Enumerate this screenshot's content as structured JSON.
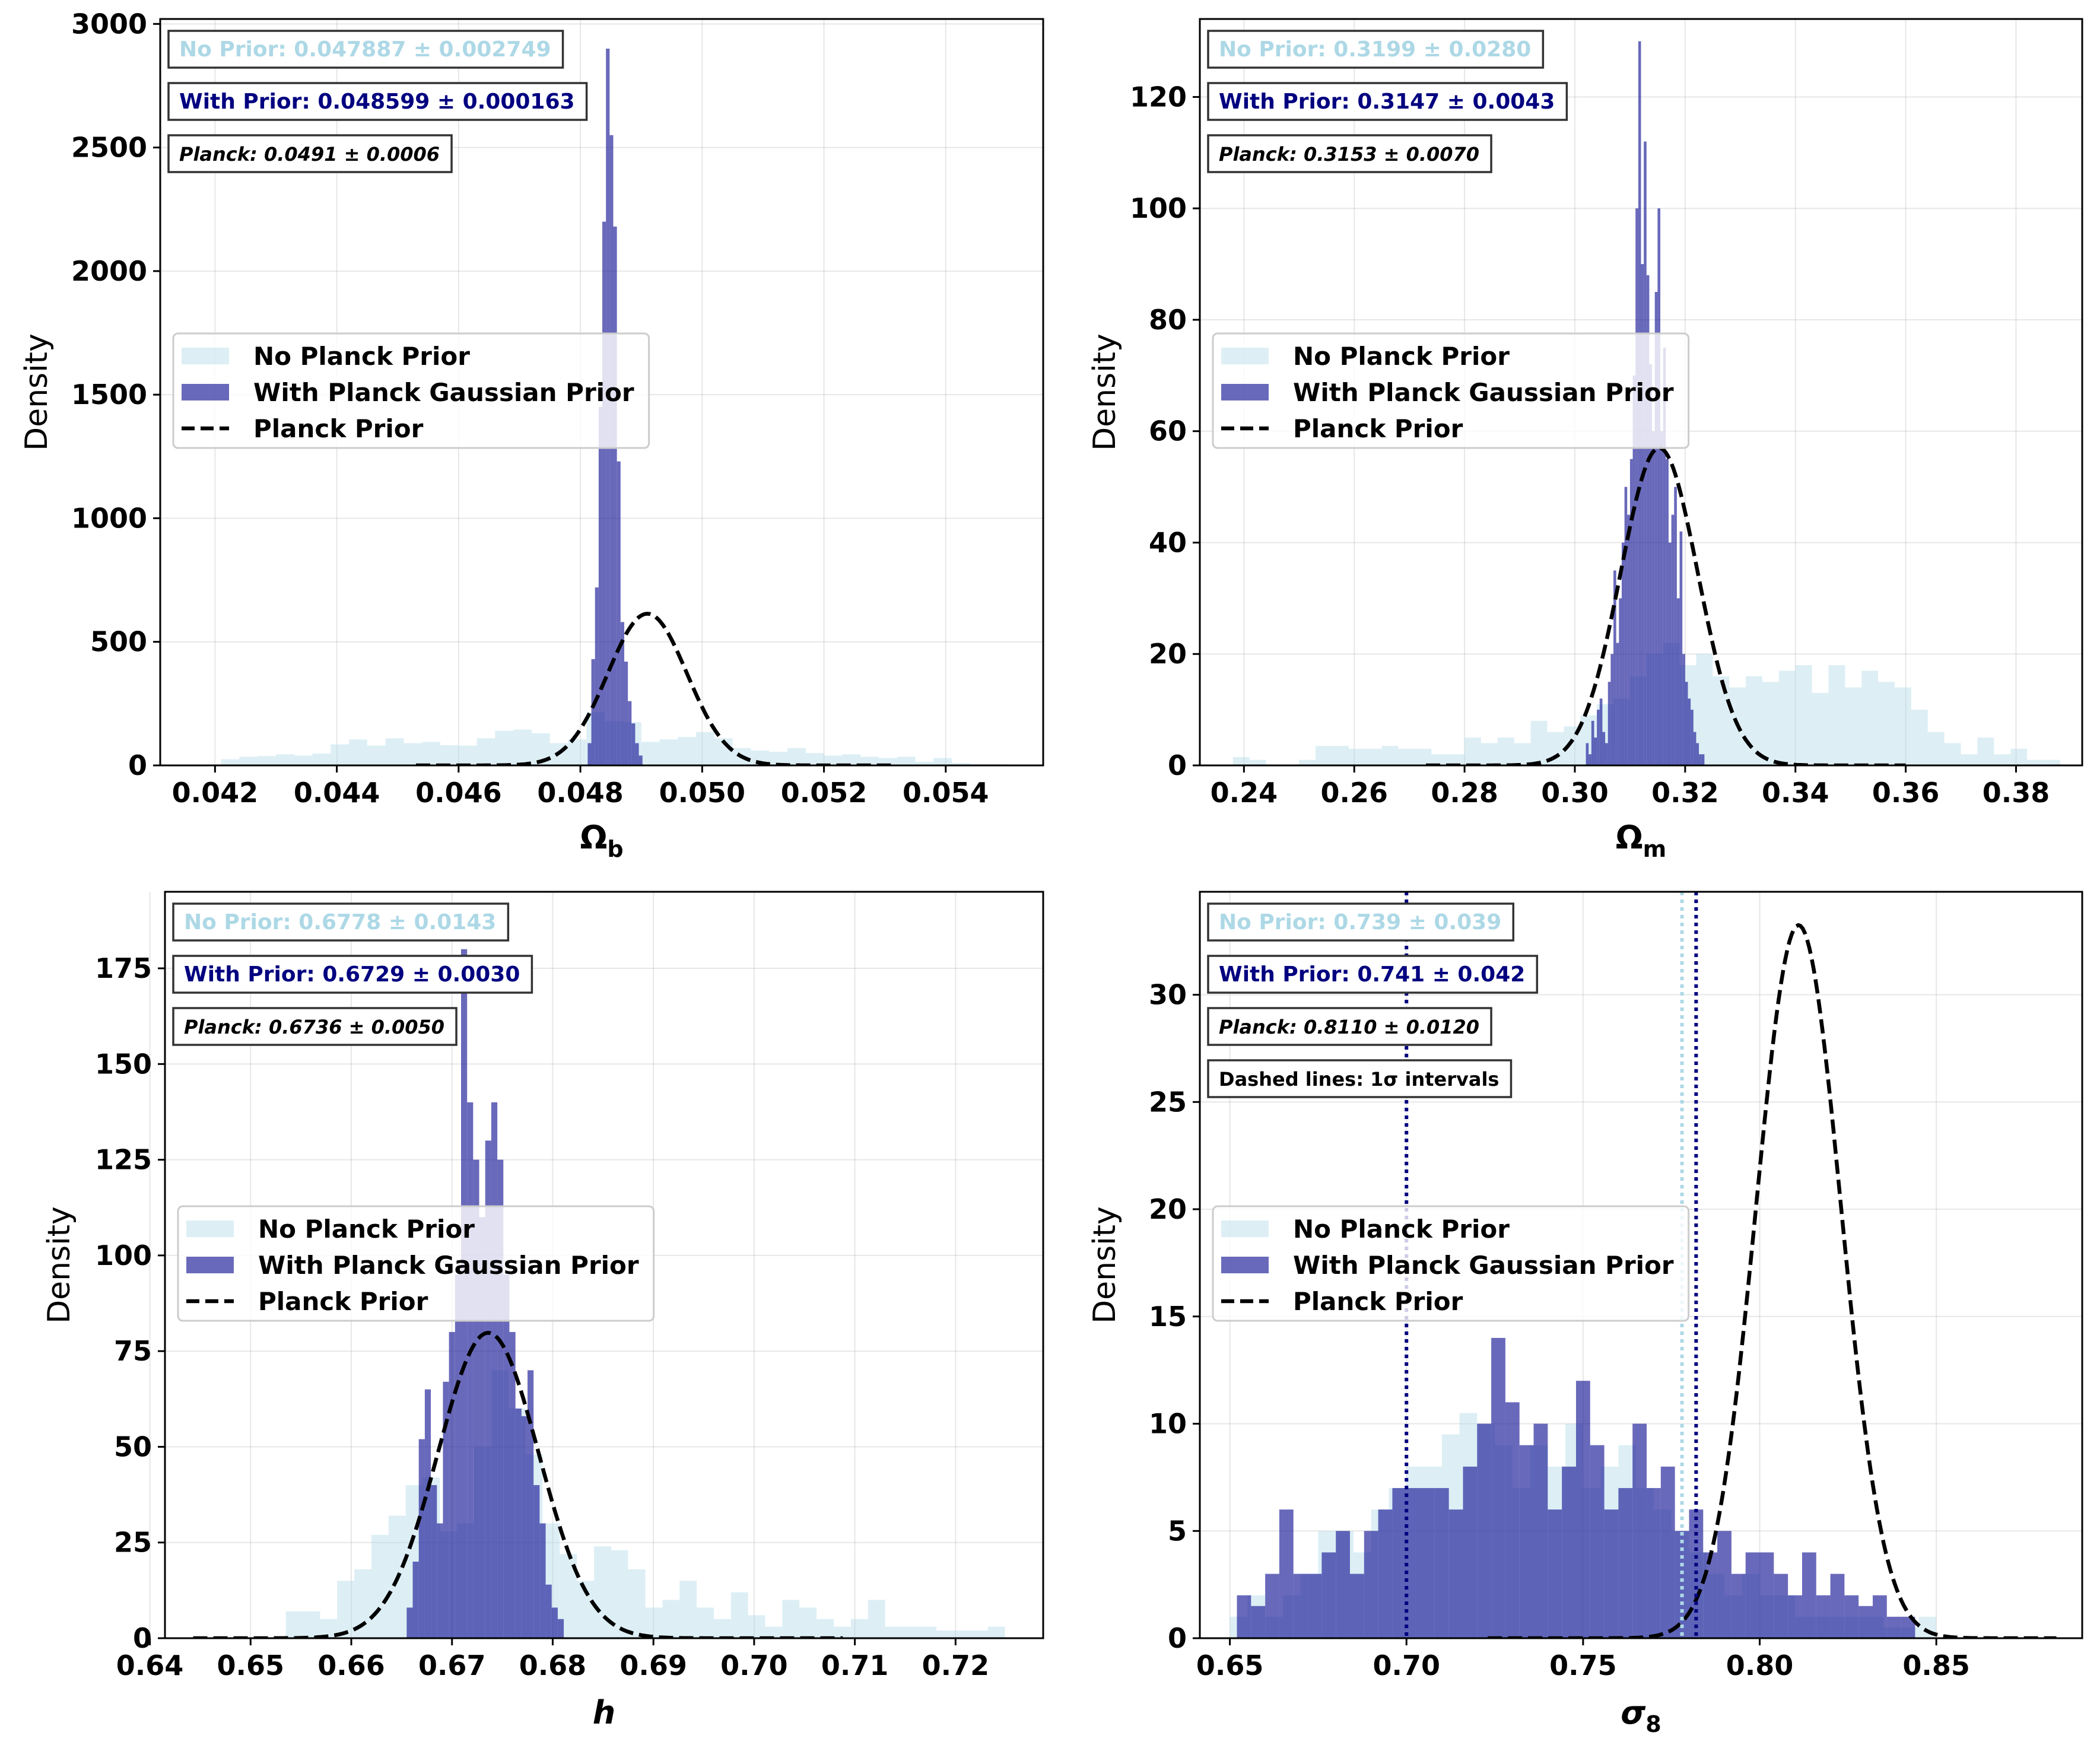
{
  "colors": {
    "no_prior": "#add8e6",
    "with_prior": "#191996",
    "planck": "#000000",
    "with_prior_text": "#000080"
  },
  "legend": {
    "no_prior": "No Planck Prior",
    "with_prior": "With Planck Gaussian Prior",
    "planck": "Planck Prior"
  },
  "ylabel": "Density",
  "chart_data": [
    {
      "type": "histogram",
      "xlabel": "Ω",
      "xlabel_sub": "b",
      "xlabel_style": "bold",
      "xlim": [
        0.0411,
        0.0556
      ],
      "ylim": [
        0,
        3020
      ],
      "xticks": [
        0.042,
        0.044,
        0.046,
        0.048,
        0.05,
        0.052,
        0.054
      ],
      "xtick_labels": [
        "0.042",
        "0.044",
        "0.046",
        "0.048",
        "0.050",
        "0.052",
        "0.054"
      ],
      "yticks": [
        0,
        500,
        1000,
        1500,
        2000,
        2500,
        3000
      ],
      "ytick_labels": [
        "0",
        "500",
        "1000",
        "1500",
        "2000",
        "2500",
        "3000"
      ],
      "no_prior_text": "No Prior: 0.047887 ± 0.002749",
      "with_prior_text": "With Prior: 0.048599 ± 0.000163",
      "planck_text": "Planck: 0.0491 ± 0.0006",
      "note": null,
      "planck": {
        "mean": 0.0491,
        "sigma": 0.00065,
        "range": [
          0.0453,
          0.0531
        ]
      },
      "no_prior": {
        "bins": [
          0.0421,
          0.0424,
          0.0427,
          0.043,
          0.0433,
          0.0436,
          0.0439,
          0.0442,
          0.0445,
          0.0448,
          0.0451,
          0.0454,
          0.0457,
          0.046,
          0.0463,
          0.0466,
          0.0469,
          0.0472,
          0.0475,
          0.0478,
          0.0481,
          0.0484,
          0.0487,
          0.049,
          0.0493,
          0.0496,
          0.0499,
          0.0502,
          0.0505,
          0.0508,
          0.0511,
          0.0514,
          0.0517,
          0.052,
          0.0523,
          0.0526,
          0.0529,
          0.0532,
          0.0535,
          0.0538,
          0.0541,
          0.0544,
          0.0547,
          0.055
        ],
        "values": [
          25,
          35,
          38,
          45,
          40,
          48,
          85,
          105,
          80,
          110,
          90,
          95,
          82,
          80,
          110,
          140,
          145,
          130,
          90,
          105,
          215,
          180,
          175,
          95,
          105,
          115,
          135,
          110,
          70,
          60,
          55,
          70,
          50,
          40,
          45,
          35,
          30,
          35,
          15,
          30,
          10,
          5,
          5
        ]
      },
      "with_prior": {
        "bins": [
          0.04812,
          0.04818,
          0.04824,
          0.0483,
          0.04836,
          0.04842,
          0.04848,
          0.04854,
          0.0486,
          0.04866,
          0.04872,
          0.04878,
          0.04884,
          0.0489,
          0.04896,
          0.04902
        ],
        "values": [
          90,
          430,
          720,
          1450,
          2200,
          2900,
          2550,
          2180,
          1230,
          580,
          420,
          260,
          170,
          90,
          40
        ]
      }
    },
    {
      "type": "histogram",
      "xlabel": "Ω",
      "xlabel_sub": "m",
      "xlabel_style": "bold",
      "xlim": [
        0.232,
        0.392
      ],
      "ylim": [
        0,
        134
      ],
      "xticks": [
        0.24,
        0.26,
        0.28,
        0.3,
        0.32,
        0.34,
        0.36,
        0.38
      ],
      "xtick_labels": [
        "0.24",
        "0.26",
        "0.28",
        "0.30",
        "0.32",
        "0.34",
        "0.36",
        "0.38"
      ],
      "yticks": [
        0,
        20,
        40,
        60,
        80,
        100,
        120
      ],
      "ytick_labels": [
        "0",
        "20",
        "40",
        "60",
        "80",
        "100",
        "120"
      ],
      "no_prior_text": "No Prior: 0.3199 ± 0.0280",
      "with_prior_text": "With Prior: 0.3147 ± 0.0043",
      "planck_text": "Planck: 0.3153 ± 0.0070",
      "note": null,
      "planck": {
        "mean": 0.3153,
        "sigma": 0.007,
        "range": [
          0.273,
          0.36
        ]
      },
      "no_prior": {
        "bins": [
          0.238,
          0.241,
          0.244,
          0.247,
          0.25,
          0.253,
          0.256,
          0.259,
          0.262,
          0.265,
          0.268,
          0.271,
          0.274,
          0.277,
          0.28,
          0.283,
          0.286,
          0.289,
          0.292,
          0.295,
          0.298,
          0.301,
          0.304,
          0.307,
          0.31,
          0.313,
          0.316,
          0.319,
          0.322,
          0.325,
          0.328,
          0.331,
          0.334,
          0.337,
          0.34,
          0.343,
          0.346,
          0.349,
          0.352,
          0.355,
          0.358,
          0.361,
          0.364,
          0.367,
          0.37,
          0.373,
          0.376,
          0.379,
          0.382,
          0.385,
          0.388
        ],
        "values": [
          1.5,
          1,
          0,
          0,
          1,
          3.5,
          3.5,
          3,
          3,
          3.5,
          3,
          3,
          2,
          2,
          5,
          4,
          5,
          4,
          8,
          6,
          7,
          9,
          11,
          12,
          16,
          20,
          22,
          18,
          20,
          16,
          14,
          16,
          15,
          17,
          18,
          13,
          18,
          14,
          17,
          15,
          14,
          10,
          6,
          4,
          2,
          5,
          2,
          3,
          1,
          1
        ]
      },
      "with_prior": {
        "bins": [
          0.302,
          0.3025,
          0.303,
          0.3035,
          0.304,
          0.3045,
          0.305,
          0.3055,
          0.306,
          0.3065,
          0.307,
          0.3075,
          0.308,
          0.3085,
          0.309,
          0.3095,
          0.31,
          0.3105,
          0.311,
          0.3115,
          0.312,
          0.3125,
          0.313,
          0.3135,
          0.314,
          0.3145,
          0.315,
          0.3155,
          0.316,
          0.3165,
          0.317,
          0.3175,
          0.318,
          0.3185,
          0.319,
          0.3195,
          0.32,
          0.3205,
          0.321,
          0.3215,
          0.322,
          0.3225,
          0.323,
          0.3235
        ],
        "values": [
          4,
          2,
          8,
          5,
          10,
          12,
          6,
          4,
          15,
          20,
          35,
          22,
          30,
          40,
          50,
          45,
          55,
          70,
          100,
          130,
          90,
          112,
          88,
          72,
          60,
          85,
          100,
          60,
          75,
          55,
          40,
          45,
          50,
          30,
          42,
          20,
          15,
          12,
          10,
          6,
          4,
          2,
          2
        ]
      }
    },
    {
      "type": "histogram",
      "xlabel": "h",
      "xlabel_sub": "",
      "xlabel_style": "bold-italic",
      "xlim": [
        0.6415,
        0.7287
      ],
      "ylim": [
        0,
        195
      ],
      "xticks": [
        0.64,
        0.65,
        0.66,
        0.67,
        0.68,
        0.69,
        0.7,
        0.71,
        0.72
      ],
      "xtick_labels": [
        "0.64",
        "0.65",
        "0.66",
        "0.67",
        "0.68",
        "0.69",
        "0.70",
        "0.71",
        "0.72"
      ],
      "yticks": [
        0,
        25,
        50,
        75,
        100,
        125,
        150,
        175
      ],
      "ytick_labels": [
        "0",
        "25",
        "50",
        "75",
        "100",
        "125",
        "150",
        "175"
      ],
      "no_prior_text": "No Prior: 0.6778 ± 0.0143",
      "with_prior_text": "With Prior: 0.6729 ± 0.0030",
      "planck_text": "Planck: 0.6736 ± 0.0050",
      "note": null,
      "planck": {
        "mean": 0.6736,
        "sigma": 0.005,
        "range": [
          0.6443,
          0.7088
        ]
      },
      "no_prior": {
        "bins": [
          0.6535,
          0.6552,
          0.6569,
          0.6586,
          0.6603,
          0.662,
          0.6637,
          0.6654,
          0.6671,
          0.6688,
          0.6705,
          0.6722,
          0.6739,
          0.6756,
          0.6773,
          0.679,
          0.6807,
          0.6824,
          0.6841,
          0.6858,
          0.6875,
          0.6892,
          0.6909,
          0.6926,
          0.6943,
          0.696,
          0.6977,
          0.6994,
          0.7011,
          0.7028,
          0.7045,
          0.7062,
          0.7079,
          0.7096,
          0.7113,
          0.713,
          0.7147,
          0.7164,
          0.7181,
          0.7198,
          0.7215,
          0.7232,
          0.7249
        ],
        "values": [
          7,
          7,
          5,
          15,
          18,
          27,
          32,
          40,
          42,
          28,
          30,
          50,
          70,
          60,
          48,
          30,
          22,
          15,
          24,
          23,
          18,
          8,
          10,
          15,
          8,
          5,
          12,
          6,
          3,
          10,
          8,
          5,
          3,
          5,
          10,
          3,
          3,
          3,
          2,
          2,
          2,
          3
        ]
      },
      "with_prior": {
        "bins": [
          0.6655,
          0.6661,
          0.6667,
          0.6673,
          0.6679,
          0.6685,
          0.6691,
          0.6697,
          0.6703,
          0.6709,
          0.6715,
          0.6721,
          0.6727,
          0.6733,
          0.6739,
          0.6745,
          0.6751,
          0.6757,
          0.6763,
          0.6769,
          0.6775,
          0.6781,
          0.6787,
          0.6793,
          0.6799,
          0.6805,
          0.6811
        ],
        "values": [
          8,
          20,
          52,
          65,
          40,
          30,
          67,
          80,
          95,
          180,
          140,
          125,
          110,
          130,
          140,
          125,
          95,
          80,
          60,
          58,
          70,
          40,
          30,
          14,
          8,
          5
        ]
      }
    },
    {
      "type": "histogram",
      "xlabel": "σ",
      "xlabel_sub": "8",
      "xlabel_style": "bold-italic",
      "xlim": [
        0.6415,
        0.8913
      ],
      "ylim": [
        0,
        34.8
      ],
      "xticks": [
        0.65,
        0.7,
        0.75,
        0.8,
        0.85
      ],
      "xtick_labels": [
        "0.65",
        "0.70",
        "0.75",
        "0.80",
        "0.85"
      ],
      "yticks": [
        0,
        5,
        10,
        15,
        20,
        25,
        30
      ],
      "ytick_labels": [
        "0",
        "5",
        "10",
        "15",
        "20",
        "25",
        "30"
      ],
      "no_prior_text": "No Prior: 0.739 ± 0.039",
      "with_prior_text": "With Prior: 0.741 ± 0.042",
      "planck_text": "Planck: 0.8110 ± 0.0120",
      "note": "Dashed lines: 1σ intervals",
      "planck": {
        "mean": 0.811,
        "sigma": 0.012,
        "range": [
          0.723,
          0.884
        ]
      },
      "vlines": [
        {
          "x": 0.7,
          "series": "with_prior"
        },
        {
          "x": 0.778,
          "series": "no_prior"
        },
        {
          "x": 0.782,
          "series": "with_prior"
        }
      ],
      "no_prior": {
        "bins": [
          0.65,
          0.655,
          0.66,
          0.665,
          0.67,
          0.675,
          0.68,
          0.685,
          0.69,
          0.695,
          0.7,
          0.705,
          0.71,
          0.715,
          0.72,
          0.725,
          0.73,
          0.735,
          0.74,
          0.745,
          0.75,
          0.755,
          0.76,
          0.765,
          0.77,
          0.775,
          0.78,
          0.785,
          0.79,
          0.795,
          0.8,
          0.805,
          0.81,
          0.815,
          0.82,
          0.825,
          0.83,
          0.835,
          0.84,
          0.845,
          0.85
        ],
        "values": [
          1,
          2,
          1,
          2,
          3,
          5,
          5,
          4,
          6,
          7,
          8,
          8,
          9.5,
          10.5,
          10,
          9,
          7,
          9,
          8,
          10,
          7,
          8,
          9,
          7,
          6,
          5,
          4,
          3,
          2,
          3,
          2,
          2,
          1,
          1,
          1,
          1,
          1,
          0.5,
          0.5,
          1
        ]
      },
      "with_prior": {
        "bins": [
          0.652,
          0.656,
          0.66,
          0.664,
          0.668,
          0.672,
          0.676,
          0.68,
          0.684,
          0.688,
          0.692,
          0.696,
          0.7,
          0.704,
          0.708,
          0.712,
          0.716,
          0.72,
          0.724,
          0.728,
          0.732,
          0.736,
          0.74,
          0.744,
          0.748,
          0.752,
          0.756,
          0.76,
          0.764,
          0.768,
          0.772,
          0.776,
          0.78,
          0.784,
          0.788,
          0.792,
          0.796,
          0.8,
          0.804,
          0.808,
          0.812,
          0.816,
          0.82,
          0.824,
          0.828,
          0.832,
          0.836,
          0.84,
          0.844
        ],
        "values": [
          2,
          1.5,
          3,
          6,
          3,
          3,
          4,
          5,
          3,
          5,
          6,
          7,
          7,
          7,
          7,
          6,
          8,
          10,
          14,
          11,
          9,
          10,
          6,
          8,
          12,
          9,
          6,
          7,
          10,
          7,
          8,
          5,
          6,
          4,
          5,
          3,
          4,
          4,
          3,
          2,
          4,
          2,
          3,
          2,
          1.5,
          2,
          1,
          1
        ]
      }
    }
  ]
}
